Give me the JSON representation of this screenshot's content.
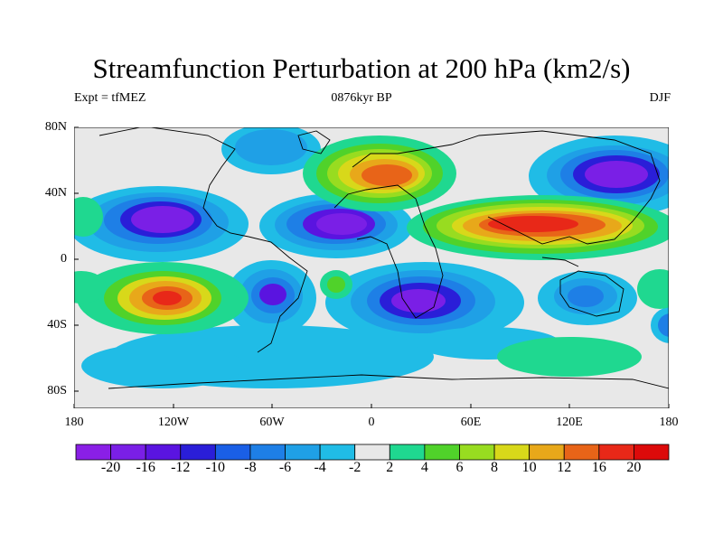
{
  "title": "Streamfunction Perturbation at 200 hPa (km2/s)",
  "subtitle_left": "Expt = tfMEZ",
  "subtitle_center": "0876kyr BP",
  "subtitle_right": "DJF",
  "lat_ticks": [
    "80N",
    "40N",
    "0",
    "40S",
    "80S"
  ],
  "lon_ticks": [
    "180",
    "120W",
    "60W",
    "0",
    "60E",
    "120E",
    "180"
  ],
  "colorbar": {
    "labels": [
      "-20",
      "-16",
      "-12",
      "-10",
      "-8",
      "-6",
      "-4",
      "-2",
      "2",
      "4",
      "6",
      "8",
      "10",
      "12",
      "16",
      "20"
    ],
    "colors": [
      "#8a1fe6",
      "#7a1fe6",
      "#5a14e0",
      "#2a1ed8",
      "#1a5fe6",
      "#1e7fe6",
      "#1fa0e6",
      "#20bce6",
      "#e8e8e8",
      "#1fd890",
      "#50d22a",
      "#98dc20",
      "#d8d81a",
      "#e8a81a",
      "#e86418",
      "#e82818",
      "#dc0a0a"
    ]
  },
  "colors": {
    "background": "#e8e8e8",
    "coast": "#000000"
  }
}
